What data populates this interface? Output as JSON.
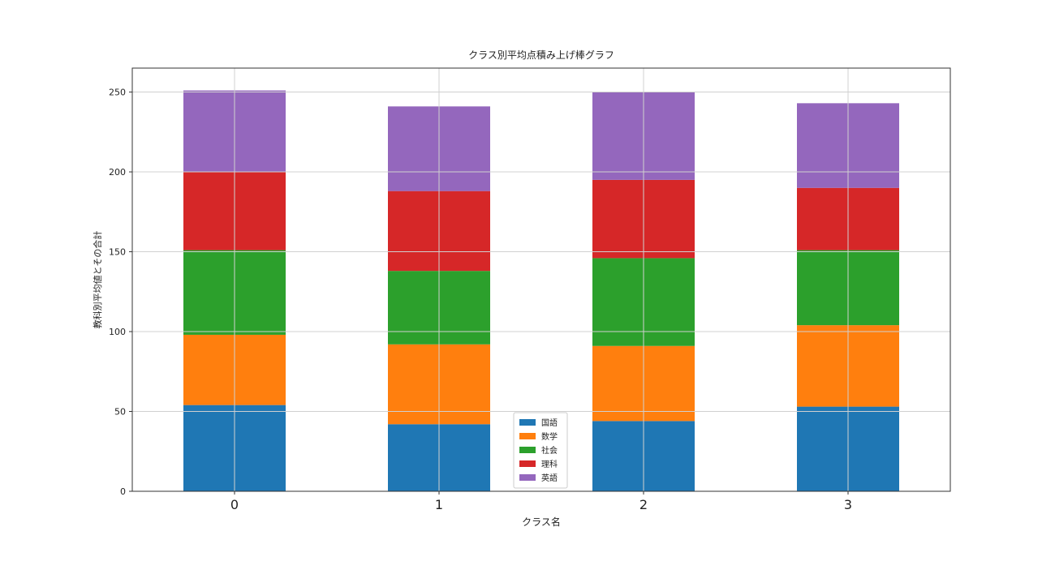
{
  "chart_data": {
    "type": "bar",
    "stacked": true,
    "title": "クラス別平均点積み上げ棒グラフ",
    "xlabel": "クラス名",
    "ylabel": "教科別平均値とその合計",
    "categories": [
      "0",
      "1",
      "2",
      "3"
    ],
    "series": [
      {
        "name": "国語",
        "color": "#1f77b4",
        "values": [
          54,
          42,
          44,
          53
        ]
      },
      {
        "name": "数学",
        "color": "#ff7f0e",
        "values": [
          44,
          50,
          47,
          51
        ]
      },
      {
        "name": "社会",
        "color": "#2ca02c",
        "values": [
          53,
          46,
          55,
          47
        ]
      },
      {
        "name": "理科",
        "color": "#d62728",
        "values": [
          49,
          50,
          49,
          39
        ]
      },
      {
        "name": "英語",
        "color": "#9467bd",
        "values": [
          51,
          53,
          55,
          53
        ]
      }
    ],
    "ylim": [
      0,
      265
    ],
    "yticks": [
      0,
      50,
      100,
      150,
      200,
      250
    ],
    "grid": true,
    "legend_position": "bottom-center"
  }
}
